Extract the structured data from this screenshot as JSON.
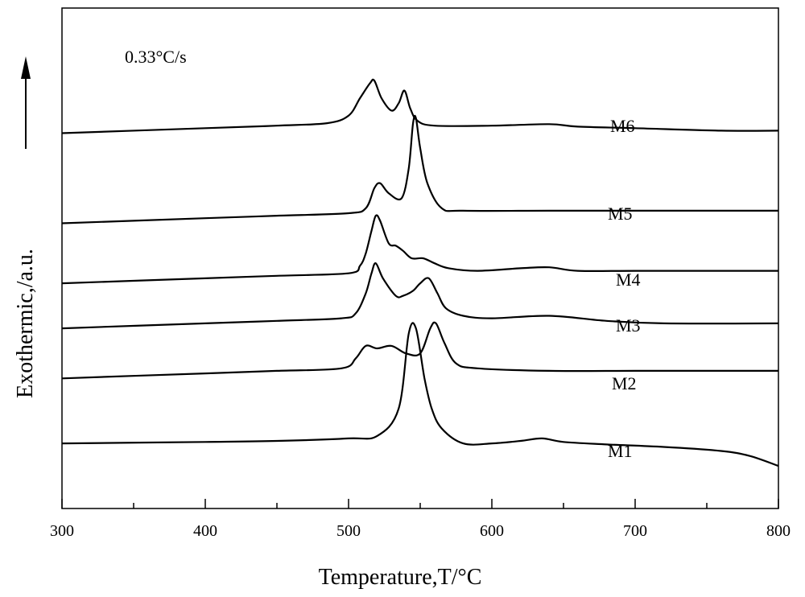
{
  "chart_data": {
    "type": "line",
    "title": "",
    "xlabel": "Temperature,T/°C",
    "ylabel": "Exothermic,/a.u.",
    "annotation": "0.33°C/s",
    "xlim": [
      300,
      800
    ],
    "ylim": [
      0,
      100
    ],
    "x_ticks": [
      300,
      400,
      500,
      600,
      700,
      800
    ],
    "x_minor_ticks": [
      350,
      450,
      550,
      650,
      750
    ],
    "grid": false,
    "legend": "none",
    "series": [
      {
        "name": "M1",
        "points": [
          [
            300,
            13
          ],
          [
            400,
            13.3
          ],
          [
            450,
            13.5
          ],
          [
            500,
            14
          ],
          [
            520,
            14.5
          ],
          [
            535,
            20
          ],
          [
            542,
            35
          ],
          [
            547,
            36
          ],
          [
            553,
            26
          ],
          [
            558,
            20
          ],
          [
            565,
            16
          ],
          [
            580,
            13
          ],
          [
            600,
            13
          ],
          [
            620,
            13.5
          ],
          [
            635,
            14
          ],
          [
            650,
            13.3
          ],
          [
            680,
            12.8
          ],
          [
            720,
            12.3
          ],
          [
            760,
            11.5
          ],
          [
            780,
            10.5
          ],
          [
            800,
            8.5
          ]
        ]
      },
      {
        "name": "M2",
        "points": [
          [
            300,
            26
          ],
          [
            400,
            27
          ],
          [
            450,
            27.5
          ],
          [
            495,
            28
          ],
          [
            505,
            30
          ],
          [
            512,
            32.5
          ],
          [
            520,
            32
          ],
          [
            530,
            32.5
          ],
          [
            540,
            31
          ],
          [
            550,
            31
          ],
          [
            557,
            36
          ],
          [
            561,
            37
          ],
          [
            567,
            33
          ],
          [
            575,
            29
          ],
          [
            590,
            28
          ],
          [
            640,
            27.5
          ],
          [
            700,
            27.5
          ],
          [
            760,
            27.5
          ],
          [
            800,
            27.5
          ]
        ]
      },
      {
        "name": "M3",
        "points": [
          [
            300,
            36
          ],
          [
            400,
            37
          ],
          [
            450,
            37.5
          ],
          [
            495,
            38
          ],
          [
            505,
            39
          ],
          [
            512,
            43
          ],
          [
            516,
            47
          ],
          [
            519,
            49
          ],
          [
            524,
            46
          ],
          [
            533,
            42.5
          ],
          [
            538,
            42.5
          ],
          [
            545,
            43.5
          ],
          [
            550,
            45
          ],
          [
            556,
            46
          ],
          [
            562,
            43
          ],
          [
            568,
            40
          ],
          [
            580,
            38.5
          ],
          [
            600,
            38
          ],
          [
            640,
            38.5
          ],
          [
            680,
            37.5
          ],
          [
            720,
            37
          ],
          [
            800,
            37
          ]
        ]
      },
      {
        "name": "M4",
        "points": [
          [
            300,
            45
          ],
          [
            400,
            46
          ],
          [
            450,
            46.5
          ],
          [
            500,
            47
          ],
          [
            508,
            48.5
          ],
          [
            512,
            51
          ],
          [
            516,
            55.5
          ],
          [
            519,
            58.5
          ],
          [
            522,
            57.5
          ],
          [
            528,
            53
          ],
          [
            533,
            52.5
          ],
          [
            538,
            51.5
          ],
          [
            544,
            50
          ],
          [
            552,
            50
          ],
          [
            560,
            49
          ],
          [
            570,
            48
          ],
          [
            590,
            47.5
          ],
          [
            620,
            48
          ],
          [
            640,
            48.2
          ],
          [
            660,
            47.5
          ],
          [
            700,
            47.5
          ],
          [
            760,
            47.5
          ],
          [
            800,
            47.5
          ]
        ]
      },
      {
        "name": "M5",
        "points": [
          [
            300,
            57
          ],
          [
            400,
            58
          ],
          [
            450,
            58.5
          ],
          [
            500,
            59
          ],
          [
            512,
            60
          ],
          [
            518,
            64
          ],
          [
            522,
            65
          ],
          [
            528,
            63
          ],
          [
            537,
            62
          ],
          [
            542,
            68
          ],
          [
            545,
            77
          ],
          [
            547,
            78
          ],
          [
            550,
            72
          ],
          [
            555,
            65
          ],
          [
            565,
            60
          ],
          [
            580,
            59.5
          ],
          [
            640,
            59.5
          ],
          [
            700,
            59.5
          ],
          [
            760,
            59.5
          ],
          [
            800,
            59.5
          ]
        ]
      },
      {
        "name": "M6",
        "points": [
          [
            300,
            75
          ],
          [
            400,
            76
          ],
          [
            450,
            76.5
          ],
          [
            485,
            77
          ],
          [
            500,
            78.5
          ],
          [
            508,
            82
          ],
          [
            515,
            85
          ],
          [
            518,
            85.5
          ],
          [
            523,
            82
          ],
          [
            530,
            79.5
          ],
          [
            535,
            81
          ],
          [
            539,
            83.5
          ],
          [
            543,
            80
          ],
          [
            548,
            77.5
          ],
          [
            560,
            76.5
          ],
          [
            600,
            76.5
          ],
          [
            640,
            76.8
          ],
          [
            660,
            76.3
          ],
          [
            700,
            76
          ],
          [
            760,
            75.5
          ],
          [
            800,
            75.5
          ]
        ]
      }
    ]
  }
}
